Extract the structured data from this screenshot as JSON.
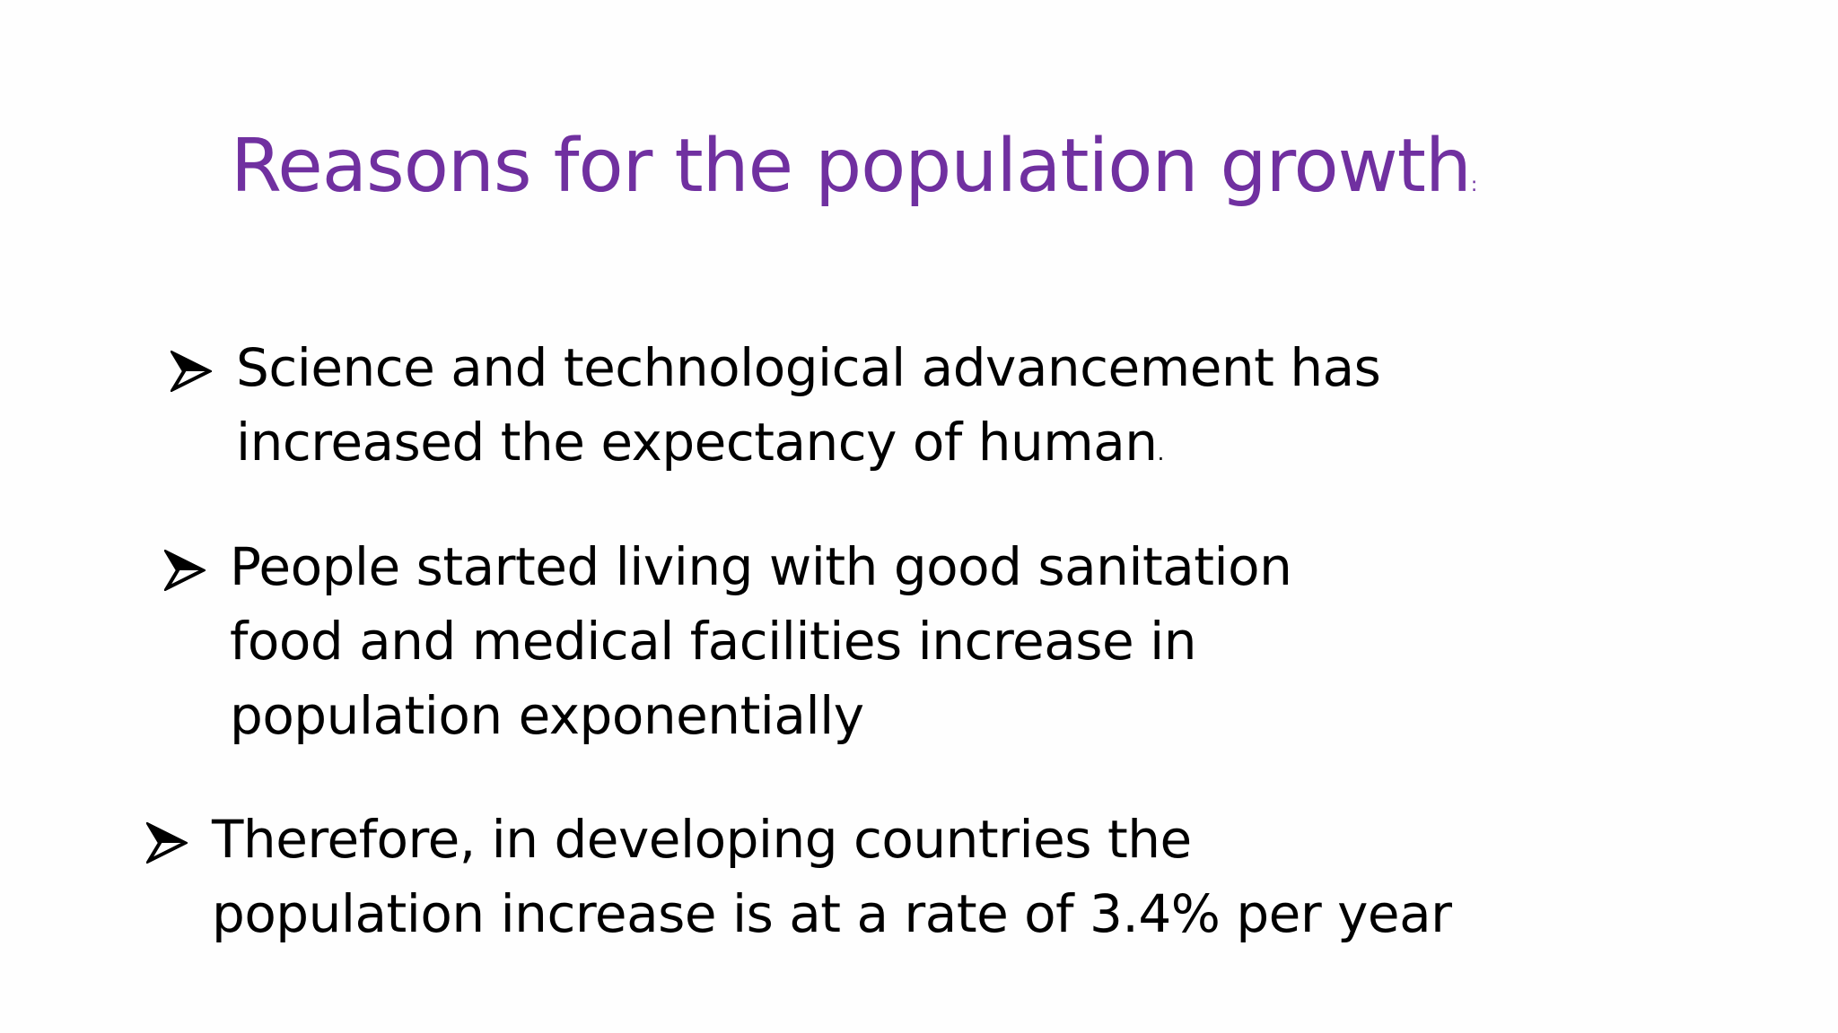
{
  "slide": {
    "title": "Reasons for the population growth",
    "title_suffix": ":",
    "bullets": [
      {
        "icon": "arrowhead-bullet-icon",
        "lines": [
          "Science and technological advancement has",
          "increased the expectancy of human"
        ],
        "suffix": "."
      },
      {
        "icon": "arrowhead-bullet-icon",
        "lines": [
          "People started living with good sanitation",
          "food and medical facilities increase in",
          "population exponentially"
        ]
      },
      {
        "icon": "arrowhead-bullet-icon",
        "lines": [
          "Therefore, in developing countries the",
          "population increase is at a rate of 3.4% per year"
        ]
      }
    ]
  },
  "colors": {
    "title": "#7030a0",
    "text": "#000000",
    "background": "#fefefe"
  }
}
